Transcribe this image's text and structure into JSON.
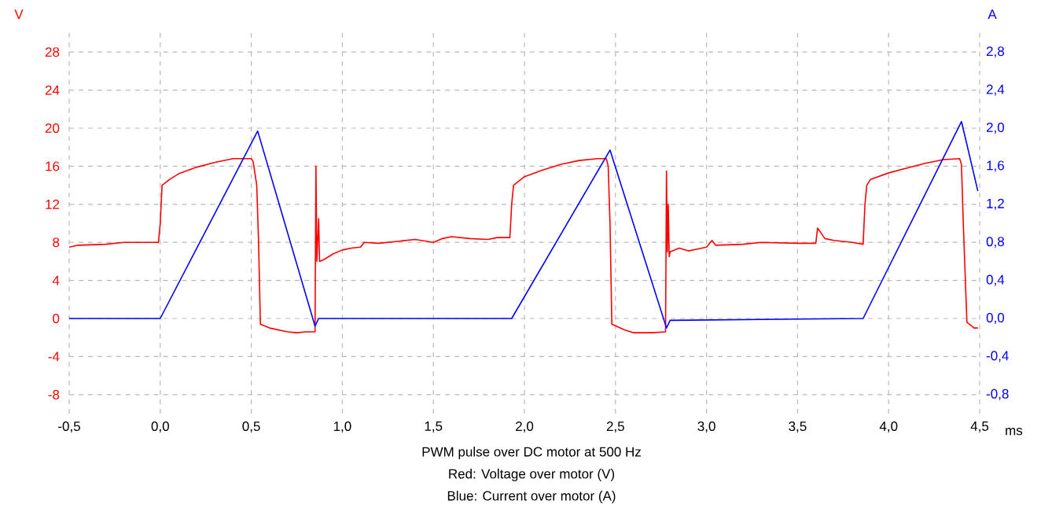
{
  "chart_data": {
    "type": "line",
    "title": "PWM pulse over DC motor at 500 Hz",
    "annotations": [
      "Red: Voltage over motor (V)",
      "Blue: Current over motor (A)"
    ],
    "xlabel": "ms",
    "ylabel": "V",
    "y2label": "A",
    "xlim": [
      -0.5,
      4.5
    ],
    "xticks": [
      {
        "value": -0.5,
        "label": "-0,5"
      },
      {
        "value": 0,
        "label": "0,0"
      },
      {
        "value": 0.5,
        "label": "0,5"
      },
      {
        "value": 1,
        "label": "1,0"
      },
      {
        "value": 1.5,
        "label": "1,5"
      },
      {
        "value": 2,
        "label": "2,0"
      },
      {
        "value": 2.5,
        "label": "2,5"
      },
      {
        "value": 3,
        "label": "3,0"
      },
      {
        "value": 3.5,
        "label": "3,5"
      },
      {
        "value": 4,
        "label": "4,0"
      },
      {
        "value": 4.5,
        "label": "4,5"
      }
    ],
    "ylim": [
      -10,
      30
    ],
    "yticks": [
      -8,
      -4,
      0,
      4,
      8,
      12,
      16,
      20,
      24,
      28
    ],
    "y2lim": [
      -1,
      3
    ],
    "y2ticks": [
      {
        "value": -0.8,
        "label": "-0,8"
      },
      {
        "value": -0.4,
        "label": "-0,4"
      },
      {
        "value": 0,
        "label": "0,0"
      },
      {
        "value": 0.4,
        "label": "0,4"
      },
      {
        "value": 0.8,
        "label": "0,8"
      },
      {
        "value": 1.2,
        "label": "1,2"
      },
      {
        "value": 1.6,
        "label": "1,6"
      },
      {
        "value": 2.0,
        "label": "2,0"
      },
      {
        "value": 2.4,
        "label": "2,4"
      },
      {
        "value": 2.8,
        "label": "2,8"
      }
    ],
    "grid": true,
    "series": [
      {
        "color": "#ff0000",
        "x": [
          -0.5,
          -0.45,
          -0.3,
          -0.2,
          -0.01,
          0.0,
          0.01,
          0.05,
          0.1,
          0.2,
          0.3,
          0.4,
          0.5,
          0.51,
          0.53,
          0.54,
          0.55,
          0.6,
          0.7,
          0.75,
          0.8,
          0.85,
          0.855,
          0.86,
          0.87,
          0.875,
          0.9,
          0.95,
          1.0,
          1.05,
          1.1,
          1.12,
          1.2,
          1.3,
          1.4,
          1.5,
          1.55,
          1.6,
          1.7,
          1.8,
          1.85,
          1.92,
          1.93,
          1.94,
          2.0,
          2.1,
          2.2,
          2.3,
          2.4,
          2.45,
          2.46,
          2.47,
          2.48,
          2.55,
          2.6,
          2.7,
          2.775,
          2.78,
          2.785,
          2.79,
          2.795,
          2.8,
          2.85,
          2.9,
          2.95,
          3.0,
          3.03,
          3.05,
          3.2,
          3.3,
          3.5,
          3.6,
          3.61,
          3.65,
          3.7,
          3.8,
          3.86,
          3.87,
          3.88,
          3.9,
          4.0,
          4.1,
          4.2,
          4.3,
          4.39,
          4.4,
          4.41,
          4.43,
          4.47,
          4.49
        ],
        "values": [
          7.5,
          7.7,
          7.8,
          8.0,
          8.0,
          10,
          14,
          14.6,
          15.2,
          15.9,
          16.4,
          16.8,
          16.8,
          16.5,
          14,
          8,
          -0.6,
          -1.0,
          -1.4,
          -1.5,
          -1.4,
          -1.4,
          16,
          6,
          10.5,
          6,
          6.2,
          6.8,
          7.2,
          7.4,
          7.5,
          8.0,
          7.9,
          8.1,
          8.3,
          8.0,
          8.4,
          8.6,
          8.4,
          8.3,
          8.5,
          8.5,
          12,
          14,
          14.9,
          15.6,
          16.2,
          16.6,
          16.8,
          16.8,
          16,
          10,
          -0.6,
          -1.2,
          -1.5,
          -1.5,
          -1.4,
          15.5,
          7,
          12,
          6.5,
          7.0,
          7.4,
          7.1,
          7.3,
          7.5,
          8.2,
          7.7,
          7.8,
          8.0,
          7.9,
          7.9,
          9.5,
          8.4,
          8.2,
          8.0,
          7.8,
          12,
          14,
          14.6,
          15.3,
          15.8,
          16.3,
          16.7,
          16.8,
          16.2,
          10,
          -0.4,
          -1.0,
          -1.0
        ]
      },
      {
        "color": "#0000ff",
        "axis": "y2",
        "x": [
          -0.5,
          0.0,
          0.535,
          0.85,
          0.87,
          1.93,
          2.47,
          2.78,
          2.8,
          3.86,
          4.4,
          4.49
        ],
        "values": [
          0,
          0,
          1.97,
          -0.08,
          0,
          0,
          1.77,
          -0.1,
          -0.02,
          0,
          2.07,
          1.34
        ]
      }
    ]
  }
}
